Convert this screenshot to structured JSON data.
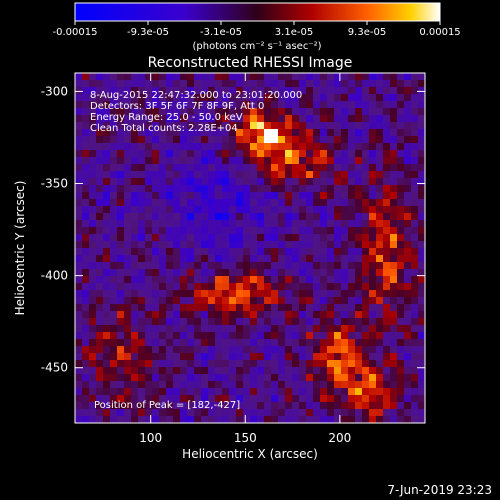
{
  "chart_data": {
    "type": "heatmap",
    "title": "Reconstructed RHESSI Image",
    "xlabel": "Heliocentric X (arcsec)",
    "ylabel": "Heliocentric Y (arcsec)",
    "xlim": [
      60,
      245
    ],
    "ylim": [
      -480,
      -290
    ],
    "x_ticks": [
      100,
      150,
      200
    ],
    "y_ticks": [
      -300,
      -350,
      -400,
      -450
    ],
    "colorbar": {
      "ticks": [
        "-0.00015",
        "-9.3e-05",
        "-3.1e-05",
        "3.1e-05",
        "9.3e-05",
        "0.00015"
      ],
      "range": [
        -0.00015,
        0.00015
      ],
      "units_label": "(photons cm⁻² s⁻¹ asec⁻²)"
    },
    "annotations": [
      "8-Aug-2015 22:47:32.000 to 23:01:20.000",
      "Detectors: 3F 5F 6F 7F 8F 9F, Att 0",
      "Energy Range: 25.0 - 50.0 keV",
      "Clean     Total counts: 2.28E+04"
    ],
    "peak_label": "Position of Peak = [182,-427]",
    "grid": false
  },
  "footer": {
    "timestamp": "7-Jun-2019 23:23"
  }
}
